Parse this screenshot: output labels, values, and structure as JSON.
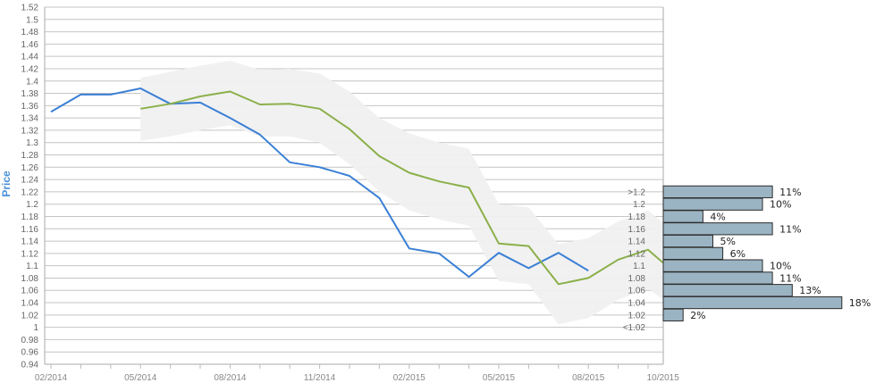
{
  "chart_data": {
    "type": "line",
    "ylabel": "Price",
    "xlabel": "",
    "ylim": [
      0.94,
      1.52
    ],
    "y_ticks": [
      "0.94",
      "0.96",
      "0.98",
      "1",
      "1.02",
      "1.04",
      "1.06",
      "1.08",
      "1.1",
      "1.12",
      "1.14",
      "1.16",
      "1.18",
      "1.2",
      "1.22",
      "1.24",
      "1.26",
      "1.28",
      "1.3",
      "1.32",
      "1.34",
      "1.36",
      "1.38",
      "1.4",
      "1.42",
      "1.44",
      "1.46",
      "1.48",
      "1.5",
      "1.52"
    ],
    "x_ticks": [
      {
        "label": "02/2014",
        "t": 0
      },
      {
        "label": "05/2014",
        "t": 3
      },
      {
        "label": "08/2014",
        "t": 6
      },
      {
        "label": "11/2014",
        "t": 9
      },
      {
        "label": "02/2015",
        "t": 12
      },
      {
        "label": "05/2015",
        "t": 15
      },
      {
        "label": "08/2015",
        "t": 18
      },
      {
        "label": "10/2015",
        "t": 20.5
      }
    ],
    "grid": true,
    "series": [
      {
        "color": "#3a7fd5",
        "x": [
          0,
          1,
          2,
          3,
          4,
          5,
          6,
          7,
          8,
          9,
          10,
          11,
          12,
          13,
          14,
          15,
          16,
          17,
          18
        ],
        "values": [
          1.35,
          1.378,
          1.378,
          1.388,
          1.363,
          1.365,
          1.34,
          1.313,
          1.268,
          1.26,
          1.246,
          1.21,
          1.128,
          1.12,
          1.082,
          1.121,
          1.096,
          1.121,
          1.092
        ]
      },
      {
        "color": "#8bb04a",
        "x": [
          3,
          4,
          5,
          6,
          7,
          8,
          9,
          10,
          11,
          12,
          13,
          14,
          15,
          16,
          17,
          18,
          19,
          20,
          20.5
        ],
        "values": [
          1.355,
          1.363,
          1.375,
          1.383,
          1.362,
          1.363,
          1.355,
          1.322,
          1.278,
          1.251,
          1.237,
          1.227,
          1.136,
          1.132,
          1.07,
          1.08,
          1.11,
          1.126,
          1.105
        ]
      }
    ],
    "band": {
      "color": "#f0f0f0",
      "x": [
        3,
        4,
        5,
        6,
        7,
        8,
        9,
        10,
        11,
        12,
        13,
        14,
        15,
        16,
        17,
        18,
        19,
        20,
        20.5
      ],
      "upper": [
        1.405,
        1.415,
        1.425,
        1.433,
        1.418,
        1.42,
        1.412,
        1.383,
        1.34,
        1.315,
        1.3,
        1.29,
        1.2,
        1.195,
        1.135,
        1.145,
        1.172,
        1.19,
        1.17
      ],
      "lower": [
        1.303,
        1.31,
        1.32,
        1.328,
        1.31,
        1.31,
        1.3,
        1.265,
        1.22,
        1.19,
        1.175,
        1.165,
        1.075,
        1.07,
        1.005,
        1.015,
        1.045,
        1.063,
        1.045
      ]
    },
    "distribution": {
      "color": "#9bb4c3",
      "border": "#2c2c2c",
      "bins": [
        {
          "label": ">1.2",
          "y": 1.22,
          "pct": 11,
          "pct_label": "11%"
        },
        {
          "label": "1.2",
          "y": 1.2,
          "pct": 10,
          "pct_label": "10%"
        },
        {
          "label": "1.18",
          "y": 1.18,
          "pct": 4,
          "pct_label": "4%"
        },
        {
          "label": "1.16",
          "y": 1.16,
          "pct": 11,
          "pct_label": "11%"
        },
        {
          "label": "1.14",
          "y": 1.14,
          "pct": 5,
          "pct_label": "5%"
        },
        {
          "label": "1.12",
          "y": 1.12,
          "pct": 6,
          "pct_label": "6%"
        },
        {
          "label": "1.1",
          "y": 1.1,
          "pct": 10,
          "pct_label": "10%"
        },
        {
          "label": "1.08",
          "y": 1.08,
          "pct": 11,
          "pct_label": "11%"
        },
        {
          "label": "1.06",
          "y": 1.06,
          "pct": 13,
          "pct_label": "13%"
        },
        {
          "label": "1.04",
          "y": 1.04,
          "pct": 18,
          "pct_label": "18%"
        },
        {
          "label": "1.02",
          "y": 1.02,
          "pct": 2,
          "pct_label": "2%"
        },
        {
          "label": "<1.02",
          "y": 1.0,
          "pct": 0,
          "pct_label": ""
        }
      ]
    }
  }
}
